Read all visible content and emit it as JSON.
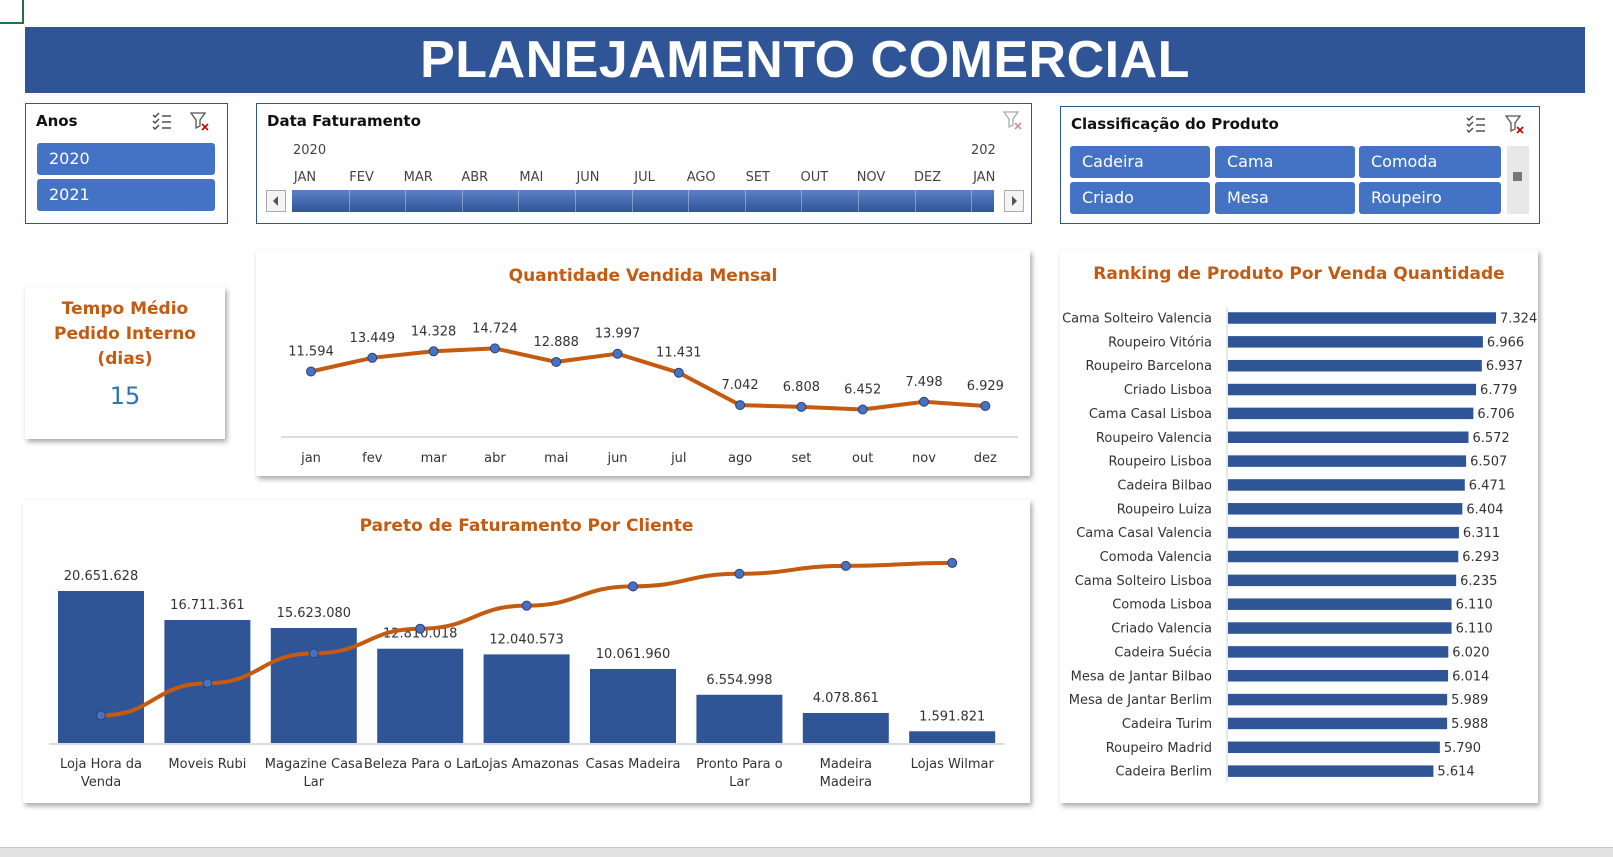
{
  "header": {
    "title": "PLANEJAMENTO COMERCIAL"
  },
  "colors": {
    "banner": "#2f5597",
    "accent": "#c55a11",
    "bar": "#2f5597",
    "slicer_button": "#4472c4"
  },
  "slicer_anos": {
    "title": "Anos",
    "items": [
      "2020",
      "2021"
    ],
    "icons": [
      "multi-select-icon",
      "clear-filter-icon"
    ]
  },
  "timeline": {
    "title": "Data Faturamento",
    "year_start": "2020",
    "year_end": "202",
    "months": [
      "JAN",
      "FEV",
      "MAR",
      "ABR",
      "MAI",
      "JUN",
      "JUL",
      "AGO",
      "SET",
      "OUT",
      "NOV",
      "DEZ",
      "JAN"
    ],
    "icons": [
      "clear-filter-icon",
      "scroll-left-icon",
      "scroll-right-icon"
    ]
  },
  "slicer_classificacao": {
    "title": "Classificação do Produto",
    "items": [
      "Cadeira",
      "Cama",
      "Comoda",
      "Criado",
      "Mesa",
      "Roupeiro"
    ],
    "icons": [
      "multi-select-icon",
      "clear-filter-icon"
    ]
  },
  "kpi": {
    "title_line1": "Tempo Médio",
    "title_line2": "Pedido Interno",
    "title_line3": "(dias)",
    "value": "15"
  },
  "chart_data": [
    {
      "id": "monthly",
      "type": "line",
      "title": "Quantidade Vendida Mensal",
      "categories": [
        "jan",
        "fev",
        "mar",
        "abr",
        "mai",
        "jun",
        "jul",
        "ago",
        "set",
        "out",
        "nov",
        "dez"
      ],
      "values": [
        11594,
        13449,
        14328,
        14724,
        12888,
        13997,
        11431,
        7042,
        6808,
        6452,
        7498,
        6929
      ],
      "labels": [
        "11.594",
        "13.449",
        "14.328",
        "14.724",
        "12.888",
        "13.997",
        "11.431",
        "7.042",
        "6.808",
        "6.452",
        "7.498",
        "6.929"
      ],
      "color": "#c55a11",
      "grid": false
    },
    {
      "id": "pareto",
      "type": "bar",
      "title": "Pareto de Faturamento Por Cliente",
      "categories": [
        "Loja Hora da Venda",
        "Moveis Rubi",
        "Magazine Casa Lar",
        "Beleza Para o Lar",
        "Lojas Amazonas",
        "Casas Madeira",
        "Pronto Para o Lar",
        "Madeira Madeira",
        "Lojas Wilmar"
      ],
      "category_lines": [
        [
          "Loja Hora da",
          "Venda"
        ],
        [
          "Moveis Rubi"
        ],
        [
          "Magazine Casa",
          "Lar"
        ],
        [
          "Beleza Para o Lar"
        ],
        [
          "Lojas Amazonas"
        ],
        [
          "Casas Madeira"
        ],
        [
          "Pronto Para o",
          "Lar"
        ],
        [
          "Madeira",
          "Madeira"
        ],
        [
          "Lojas Wilmar"
        ]
      ],
      "values": [
        20651628,
        16711361,
        15623080,
        12810018,
        12040573,
        10061960,
        6554998,
        4078861,
        1591821
      ],
      "labels": [
        "20.651.628",
        "16.711.361",
        "15.623.080",
        "12.810.018",
        "12.040.573",
        "10.061.960",
        "6.554.998",
        "4.078.861",
        "1.591.821"
      ],
      "cumulative_percent": [
        20.1,
        36.4,
        51.6,
        64.1,
        75.8,
        85.6,
        92.0,
        96.0,
        97.5
      ],
      "bar_color": "#2f5597",
      "line_color": "#c55a11",
      "grid": false
    },
    {
      "id": "ranking",
      "type": "bar",
      "orientation": "horizontal",
      "title": "Ranking de Produto Por Venda Quantidade",
      "categories": [
        "Cama Solteiro Valencia",
        "Roupeiro Vitória",
        "Roupeiro Barcelona",
        "Criado Lisboa",
        "Cama Casal Lisboa",
        "Roupeiro Valencia",
        "Roupeiro Lisboa",
        "Cadeira Bilbao",
        "Roupeiro Luiza",
        "Cama Casal Valencia",
        "Comoda Valencia",
        "Cama Solteiro Lisboa",
        "Comoda Lisboa",
        "Criado Valencia",
        "Cadeira Suécia",
        "Mesa de Jantar Bilbao",
        "Mesa de Jantar Berlim",
        "Cadeira Turim",
        "Roupeiro Madrid",
        "Cadeira Berlim"
      ],
      "values": [
        7324,
        6966,
        6937,
        6779,
        6706,
        6572,
        6507,
        6471,
        6404,
        6311,
        6293,
        6235,
        6110,
        6110,
        6020,
        6014,
        5989,
        5988,
        5790,
        5614
      ],
      "labels": [
        "7.324",
        "6.966",
        "6.937",
        "6.779",
        "6.706",
        "6.572",
        "6.507",
        "6.471",
        "6.404",
        "6.311",
        "6.293",
        "6.235",
        "6.110",
        "6.110",
        "6.020",
        "6.014",
        "5.989",
        "5.988",
        "5.790",
        "5.614"
      ],
      "bar_color": "#2f5597",
      "grid": false
    }
  ]
}
